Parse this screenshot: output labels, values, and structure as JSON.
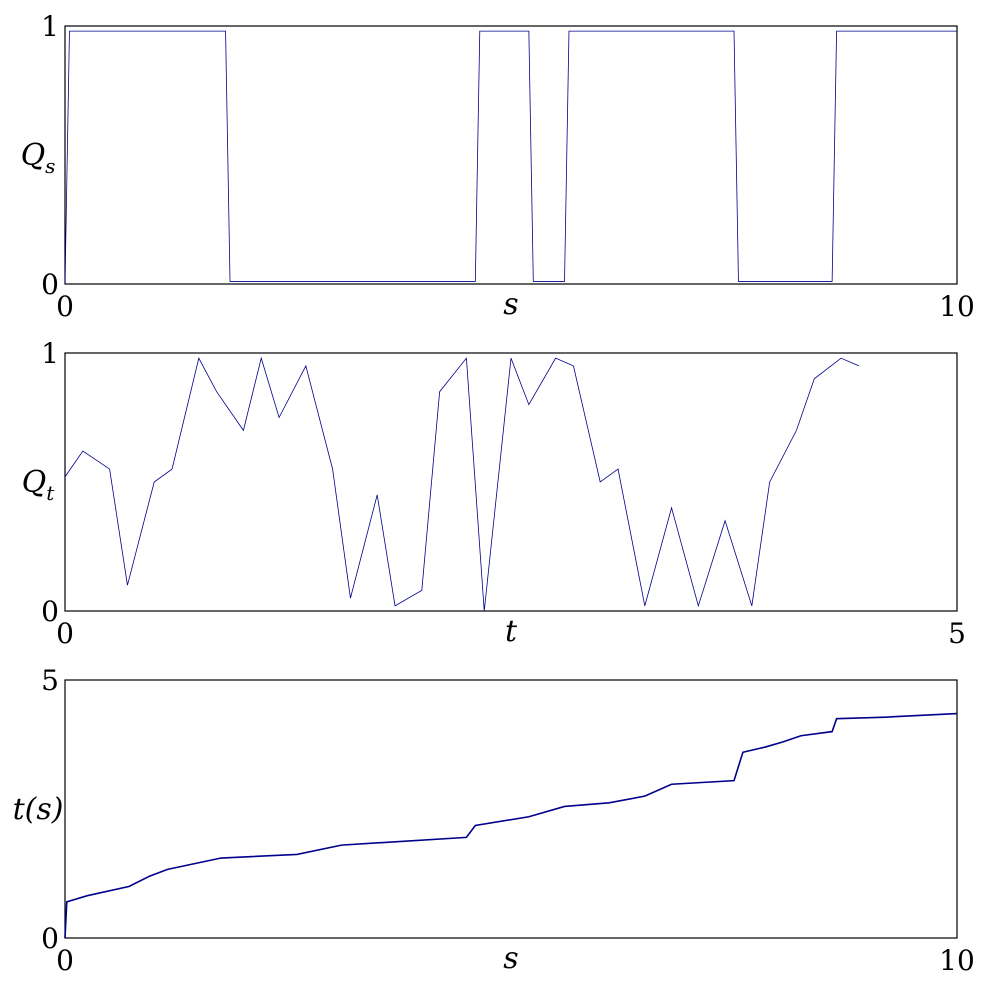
{
  "chart_data": [
    {
      "type": "line",
      "ylabel": "Q_s",
      "ylabel_main": "Q",
      "ylabel_sub": "s",
      "xlabel": "s",
      "xlim": [
        0,
        10
      ],
      "ylim": [
        0,
        1
      ],
      "xticks": [
        "0",
        "10"
      ],
      "yticks": [
        "0",
        "1"
      ],
      "grid": false,
      "series": [
        {
          "x": [
            0,
            0.05,
            1.7,
            1.8,
            1.85,
            4.6,
            4.65,
            5.2,
            5.25,
            5.6,
            5.65,
            7.5,
            7.55,
            8.6,
            8.65,
            10
          ],
          "y": [
            0,
            0.98,
            0.98,
            0.98,
            0.01,
            0.01,
            0.98,
            0.98,
            0.01,
            0.01,
            0.98,
            0.98,
            0.01,
            0.01,
            0.98,
            0.98
          ]
        }
      ]
    },
    {
      "type": "line",
      "ylabel": "Q_t",
      "ylabel_main": "Q",
      "ylabel_sub": "t",
      "xlabel": "t",
      "xlim": [
        0,
        5
      ],
      "ylim": [
        0,
        1
      ],
      "xticks": [
        "0",
        "5"
      ],
      "yticks": [
        "0",
        "1"
      ],
      "grid": false,
      "series": [
        {
          "x": [
            0,
            0.1,
            0.25,
            0.35,
            0.5,
            0.6,
            0.75,
            0.85,
            1.0,
            1.1,
            1.2,
            1.35,
            1.5,
            1.6,
            1.75,
            1.85,
            2.0,
            2.1,
            2.25,
            2.35,
            2.5,
            2.6,
            2.75,
            2.85,
            3.0,
            3.1,
            3.25,
            3.4,
            3.55,
            3.7,
            3.85,
            3.95,
            4.1,
            4.2,
            4.35,
            4.45
          ],
          "y": [
            0.52,
            0.62,
            0.55,
            0.1,
            0.5,
            0.55,
            0.98,
            0.85,
            0.7,
            0.98,
            0.75,
            0.95,
            0.55,
            0.05,
            0.45,
            0.02,
            0.08,
            0.85,
            0.98,
            0.0,
            0.98,
            0.8,
            0.98,
            0.95,
            0.5,
            0.55,
            0.02,
            0.4,
            0.02,
            0.35,
            0.02,
            0.5,
            0.7,
            0.9,
            0.98,
            0.95
          ]
        }
      ]
    },
    {
      "type": "line",
      "ylabel": "t(s)",
      "xlabel": "s",
      "xlim": [
        0,
        10
      ],
      "ylim": [
        0,
        5
      ],
      "xticks": [
        "0",
        "10"
      ],
      "yticks": [
        "0",
        "5"
      ],
      "grid": false,
      "series": [
        {
          "x": [
            0,
            0.02,
            0.25,
            0.72,
            0.95,
            1.15,
            1.75,
            2.6,
            3.1,
            4.5,
            4.6,
            5.2,
            5.6,
            6.1,
            6.5,
            6.8,
            7.5,
            7.6,
            7.85,
            8.05,
            8.25,
            8.6,
            8.65,
            9.2,
            10
          ],
          "y": [
            0,
            0.7,
            0.82,
            1.0,
            1.2,
            1.33,
            1.55,
            1.62,
            1.8,
            1.95,
            2.18,
            2.35,
            2.55,
            2.62,
            2.75,
            2.98,
            3.05,
            3.6,
            3.7,
            3.8,
            3.92,
            4.0,
            4.25,
            4.28,
            4.35
          ]
        }
      ]
    }
  ]
}
